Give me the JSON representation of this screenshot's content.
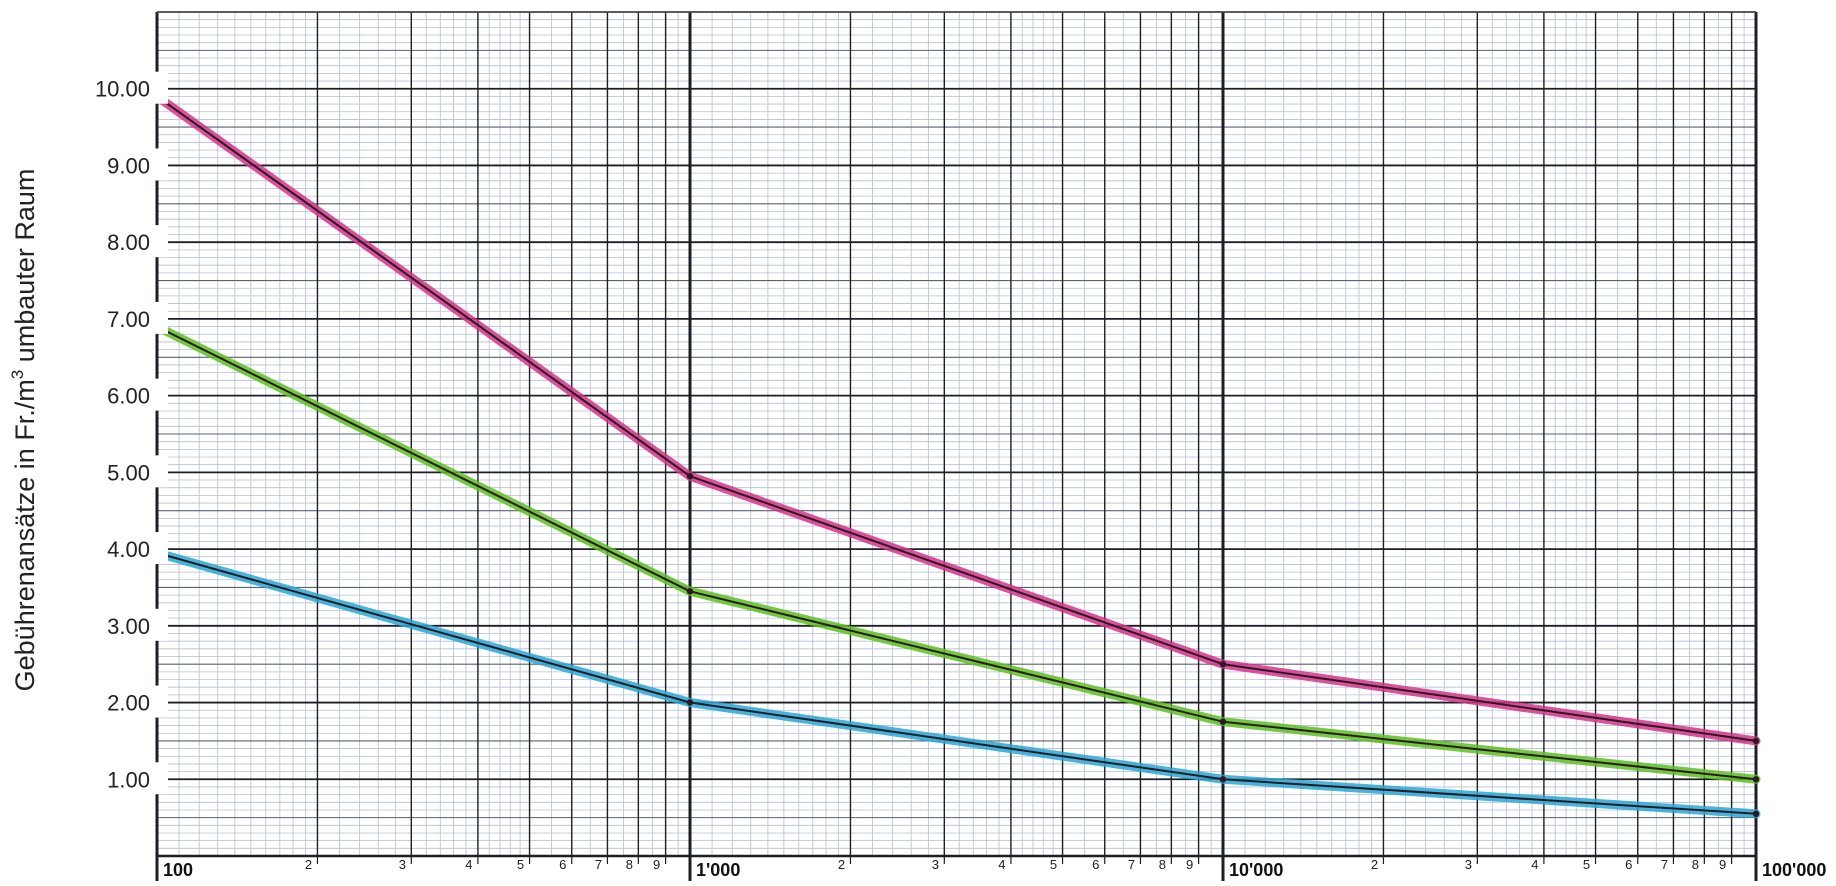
{
  "chart_data": {
    "type": "line",
    "title": "",
    "xlabel": "",
    "ylabel": "Gebührenansätze in Fr./m³ umbauter Raum",
    "ylabel_main": "Gebührenansätze in Fr./m",
    "ylabel_sup": "3",
    "ylabel_tail": " umbauter Raum",
    "x_scale": "log",
    "xlim": [
      100,
      100000
    ],
    "ylim": [
      0,
      11.0
    ],
    "grid": true,
    "legend": "none",
    "y_ticks": [
      1,
      2,
      3,
      4,
      5,
      6,
      7,
      8,
      9,
      10
    ],
    "y_tick_labels": [
      "1.00",
      "2.00",
      "3.00",
      "4.00",
      "5.00",
      "6.00",
      "7.00",
      "8.00",
      "9.00",
      "10.00"
    ],
    "x_decade_ticks": [
      100,
      1000,
      10000,
      100000
    ],
    "x_decade_labels": [
      "100",
      "1'000",
      "10'000",
      "100'000"
    ],
    "x_minor_ticks": [
      {
        "x": 200,
        "label": "2"
      },
      {
        "x": 300,
        "label": "3"
      },
      {
        "x": 400,
        "label": "4"
      },
      {
        "x": 500,
        "label": "5"
      },
      {
        "x": 600,
        "label": "6"
      },
      {
        "x": 700,
        "label": "7"
      },
      {
        "x": 800,
        "label": "8"
      },
      {
        "x": 900,
        "label": "9"
      },
      {
        "x": 2000,
        "label": "2"
      },
      {
        "x": 3000,
        "label": "3"
      },
      {
        "x": 4000,
        "label": "4"
      },
      {
        "x": 5000,
        "label": "5"
      },
      {
        "x": 6000,
        "label": "6"
      },
      {
        "x": 7000,
        "label": "7"
      },
      {
        "x": 8000,
        "label": "8"
      },
      {
        "x": 9000,
        "label": "9"
      },
      {
        "x": 20000,
        "label": "2"
      },
      {
        "x": 30000,
        "label": "3"
      },
      {
        "x": 40000,
        "label": "4"
      },
      {
        "x": 50000,
        "label": "5"
      },
      {
        "x": 60000,
        "label": "6"
      },
      {
        "x": 70000,
        "label": "7"
      },
      {
        "x": 80000,
        "label": "8"
      },
      {
        "x": 90000,
        "label": "9"
      }
    ],
    "series": [
      {
        "color": "#d6338a",
        "x": [
          100,
          1000,
          10000,
          100000
        ],
        "y": [
          9.9,
          4.95,
          2.5,
          1.5
        ]
      },
      {
        "color": "#5cc020",
        "x": [
          100,
          1000,
          10000,
          100000
        ],
        "y": [
          6.9,
          3.45,
          1.75,
          1.0
        ]
      },
      {
        "color": "#27a7d6",
        "x": [
          100,
          1000,
          10000,
          100000
        ],
        "y": [
          3.95,
          2.0,
          1.0,
          0.55
        ]
      }
    ],
    "colors": {
      "grid_fine": "#b4bfd3",
      "grid_mid": "#5a6170",
      "grid_major": "#1c1f25",
      "line_core": "#2a1a22"
    }
  }
}
